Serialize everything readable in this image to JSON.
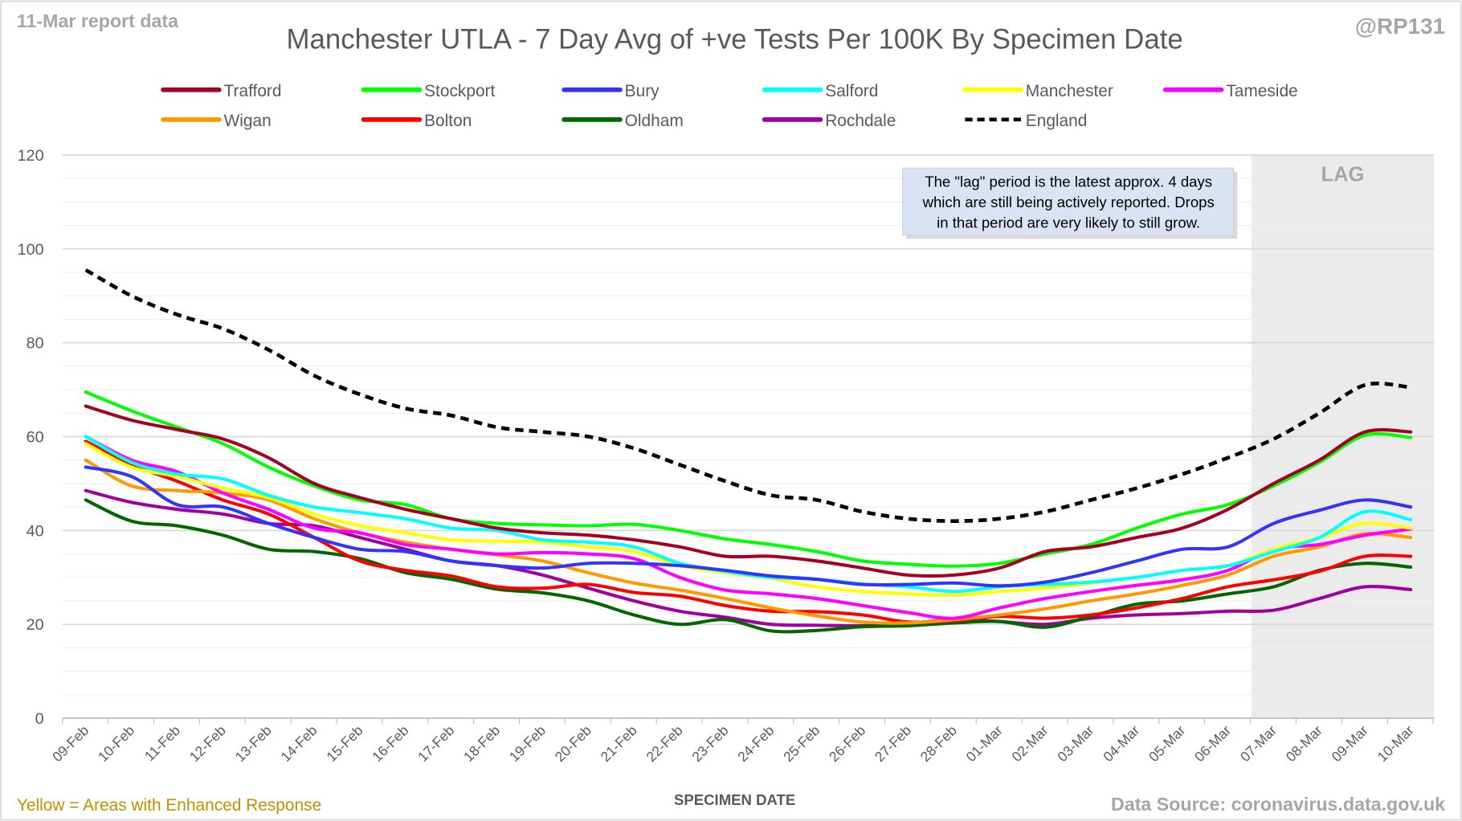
{
  "chart_data": {
    "type": "line",
    "title": "Manchester UTLA - 7 Day Avg of +ve Tests Per 100K By Specimen Date",
    "report_label": "11-Mar report data",
    "handle": "@RP131",
    "xlabel": "SPECIMEN DATE",
    "ylabel": "",
    "ylim": [
      0,
      120
    ],
    "yticks": [
      0,
      20,
      40,
      60,
      80,
      100,
      120
    ],
    "grid": true,
    "legend_position": "top",
    "lag_label": "LAG",
    "lag_start_index": 26,
    "annotation": [
      "The \"lag\" period is the latest approx. 4 days",
      "which are still being actively reported.  Drops",
      "in that period are very likely to still grow."
    ],
    "footer_left": "Yellow = Areas with Enhanced Response",
    "footer_right": "Data Source: coronavirus.data.gov.uk",
    "x": [
      "09-Feb",
      "10-Feb",
      "11-Feb",
      "12-Feb",
      "13-Feb",
      "14-Feb",
      "15-Feb",
      "16-Feb",
      "17-Feb",
      "18-Feb",
      "19-Feb",
      "20-Feb",
      "21-Feb",
      "22-Feb",
      "23-Feb",
      "24-Feb",
      "25-Feb",
      "26-Feb",
      "27-Feb",
      "28-Feb",
      "01-Mar",
      "02-Mar",
      "03-Mar",
      "04-Mar",
      "05-Mar",
      "06-Mar",
      "07-Mar",
      "08-Mar",
      "09-Mar",
      "10-Mar"
    ],
    "series": [
      {
        "name": "Trafford",
        "color": "#a50021",
        "dashed": false,
        "values": [
          66.5,
          63.5,
          61.5,
          59.5,
          55.5,
          50,
          47,
          44.5,
          42.5,
          40.5,
          39.5,
          39,
          38,
          36.5,
          34.5,
          34.5,
          33.5,
          32,
          30.5,
          30.5,
          32,
          35.5,
          36.5,
          38.5,
          40.5,
          44.5,
          50,
          55,
          61,
          61
        ]
      },
      {
        "name": "Stockport",
        "color": "#00ff00",
        "dashed": false,
        "values": [
          69.5,
          65.5,
          62,
          58.5,
          53.5,
          49.5,
          46.5,
          45.5,
          42.5,
          41.5,
          41.2,
          41,
          41.3,
          40,
          38.2,
          37,
          35.5,
          33.5,
          32.8,
          32.4,
          33,
          35,
          37,
          40.5,
          43.5,
          45.5,
          49.5,
          54.5,
          60.3,
          59.8
        ]
      },
      {
        "name": "Bury",
        "color": "#3333ff",
        "dashed": false,
        "values": [
          53.5,
          51.5,
          45.5,
          45,
          41.5,
          38.5,
          36,
          35.5,
          33.5,
          32.5,
          32,
          33,
          33,
          32.5,
          31.5,
          30.3,
          29.6,
          28.5,
          28.5,
          28.8,
          28.2,
          29,
          31,
          33.5,
          36,
          36.5,
          41.5,
          44.3,
          46.5,
          45
        ]
      },
      {
        "name": "Salford",
        "color": "#00ffff",
        "dashed": false,
        "values": [
          60,
          54.5,
          52,
          51,
          47.5,
          45,
          43.8,
          42.5,
          40.5,
          40,
          38,
          37.5,
          36.5,
          33,
          31.3,
          30,
          29.6,
          28.6,
          28,
          27,
          28,
          28.5,
          29,
          30,
          31.5,
          32.5,
          35.5,
          38.5,
          44,
          42.3
        ]
      },
      {
        "name": "Manchester",
        "color": "#ffff00",
        "dashed": false,
        "values": [
          58.5,
          53.5,
          51.5,
          49,
          47,
          43.5,
          41,
          39.5,
          38,
          37.7,
          37.5,
          36.5,
          35.5,
          32.5,
          31,
          29.8,
          28,
          27,
          26.5,
          26.2,
          27,
          27.7,
          28.8,
          30,
          31.5,
          32.5,
          36,
          38.5,
          41.5,
          40.5
        ]
      },
      {
        "name": "Tameside",
        "color": "#ff00ff",
        "dashed": false,
        "values": [
          60,
          55,
          52.5,
          48,
          44.5,
          40.5,
          39.5,
          37,
          36,
          35,
          35.3,
          35,
          34,
          30,
          27.3,
          26.5,
          25.5,
          24,
          22.5,
          21.3,
          23.5,
          25.5,
          27,
          28.3,
          29.5,
          31.5,
          36,
          37,
          39,
          40.3
        ]
      },
      {
        "name": "Wigan",
        "color": "#ff9900",
        "dashed": false,
        "values": [
          55,
          49.5,
          48.5,
          48,
          46.5,
          42.5,
          39.5,
          37.5,
          36,
          34.8,
          33.5,
          31,
          28.8,
          27.3,
          25.5,
          23.5,
          21.8,
          20.5,
          20.3,
          21,
          22,
          23.3,
          25,
          26.5,
          28.3,
          30.5,
          34.5,
          36.5,
          39.3,
          38.5
        ]
      },
      {
        "name": "Bolton",
        "color": "#ff0000",
        "dashed": false,
        "values": [
          59,
          54,
          50.5,
          46.5,
          43.5,
          38.5,
          33.5,
          31.5,
          30.3,
          28,
          27.7,
          28.5,
          26.8,
          26,
          24,
          22.8,
          22.7,
          22,
          20.5,
          20.8,
          21.7,
          21.3,
          22,
          23.5,
          25.5,
          28,
          29.5,
          31.3,
          34.5,
          34.5
        ]
      },
      {
        "name": "Oldham",
        "color": "#006600",
        "dashed": false,
        "values": [
          46.5,
          42,
          41,
          39,
          36,
          35.5,
          34,
          31,
          29.6,
          27.5,
          26.7,
          25,
          22,
          20,
          21,
          18.6,
          18.7,
          19.5,
          19.7,
          20.3,
          20.6,
          19.4,
          21.7,
          24.3,
          25,
          26.5,
          28,
          31.5,
          33,
          32.2
        ]
      },
      {
        "name": "Rochdale",
        "color": "#a000a0",
        "dashed": false,
        "values": [
          48.5,
          46,
          44.5,
          43.5,
          41.5,
          41,
          38.5,
          36,
          33.5,
          32.5,
          30.5,
          27.7,
          25,
          22.8,
          21.5,
          20,
          19.8,
          19.7,
          20.2,
          21,
          20.6,
          20,
          21.3,
          22,
          22.3,
          22.8,
          23,
          25.5,
          28,
          27.4
        ]
      },
      {
        "name": "England",
        "color": "#000000",
        "dashed": true,
        "values": [
          95.5,
          90,
          86,
          83,
          78.5,
          73,
          69,
          66,
          64.5,
          62,
          61,
          60,
          57.5,
          54,
          50.5,
          47.5,
          46.5,
          44,
          42.5,
          42,
          42.5,
          44,
          46.5,
          49,
          52,
          55.5,
          59.5,
          65,
          71,
          70.5
        ]
      }
    ]
  }
}
